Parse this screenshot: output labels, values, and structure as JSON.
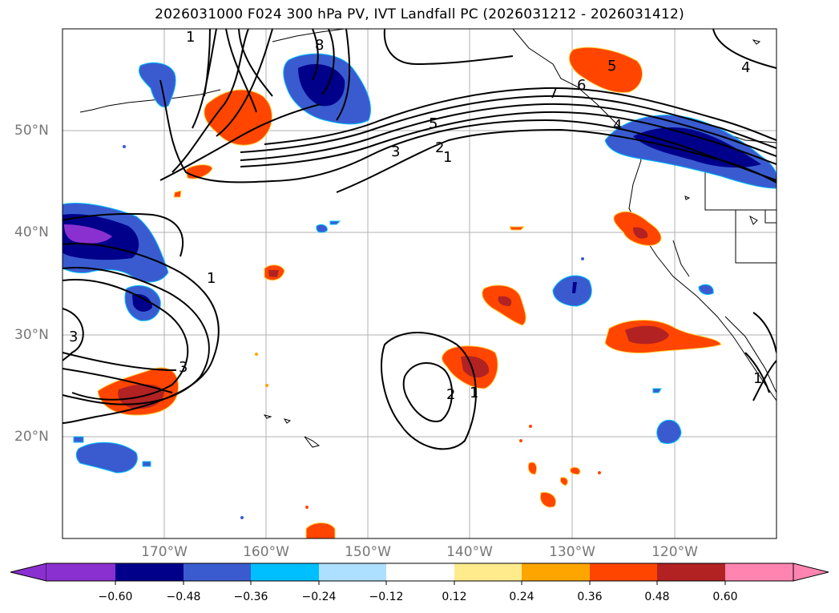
{
  "title": "2026031000 F024 300 hPa PV, IVT Landfall PC (2026031212 - 2026031412)",
  "longitude_labels": [
    "170°W",
    "160°W",
    "150°W",
    "140°W",
    "130°W",
    "120°W"
  ],
  "latitude_labels": [
    "50°N",
    "40°N",
    "30°N",
    "20°N"
  ],
  "pv_contour_labels": [
    "8",
    "6",
    "5",
    "5",
    "4",
    "4",
    "3",
    "2",
    "1",
    "1",
    "3",
    "3",
    "2",
    "1",
    "1",
    "7",
    "1"
  ],
  "colorbar": {
    "ticks": [
      "−0.60",
      "−0.48",
      "−0.36",
      "−0.24",
      "−0.12",
      "0.12",
      "0.24",
      "0.36",
      "0.48",
      "0.60"
    ],
    "colors": [
      "#8B30D0",
      "#00008B",
      "#3A5BD0",
      "#00BFFF",
      "#ADDFFF",
      "#FFFFFF",
      "#FFEB8C",
      "#FFA500",
      "#FF4500",
      "#B22222",
      "#FF85B0"
    ]
  },
  "colors": {
    "negative_strong": "#00008B",
    "negative_mid": "#3A5BD0",
    "negative_weak": "#00BFFF",
    "positive_weak": "#FFA500",
    "positive_mid": "#FF4500",
    "positive_strong": "#B22222",
    "gridline": "#b0b0b0",
    "contour": "#000000"
  }
}
